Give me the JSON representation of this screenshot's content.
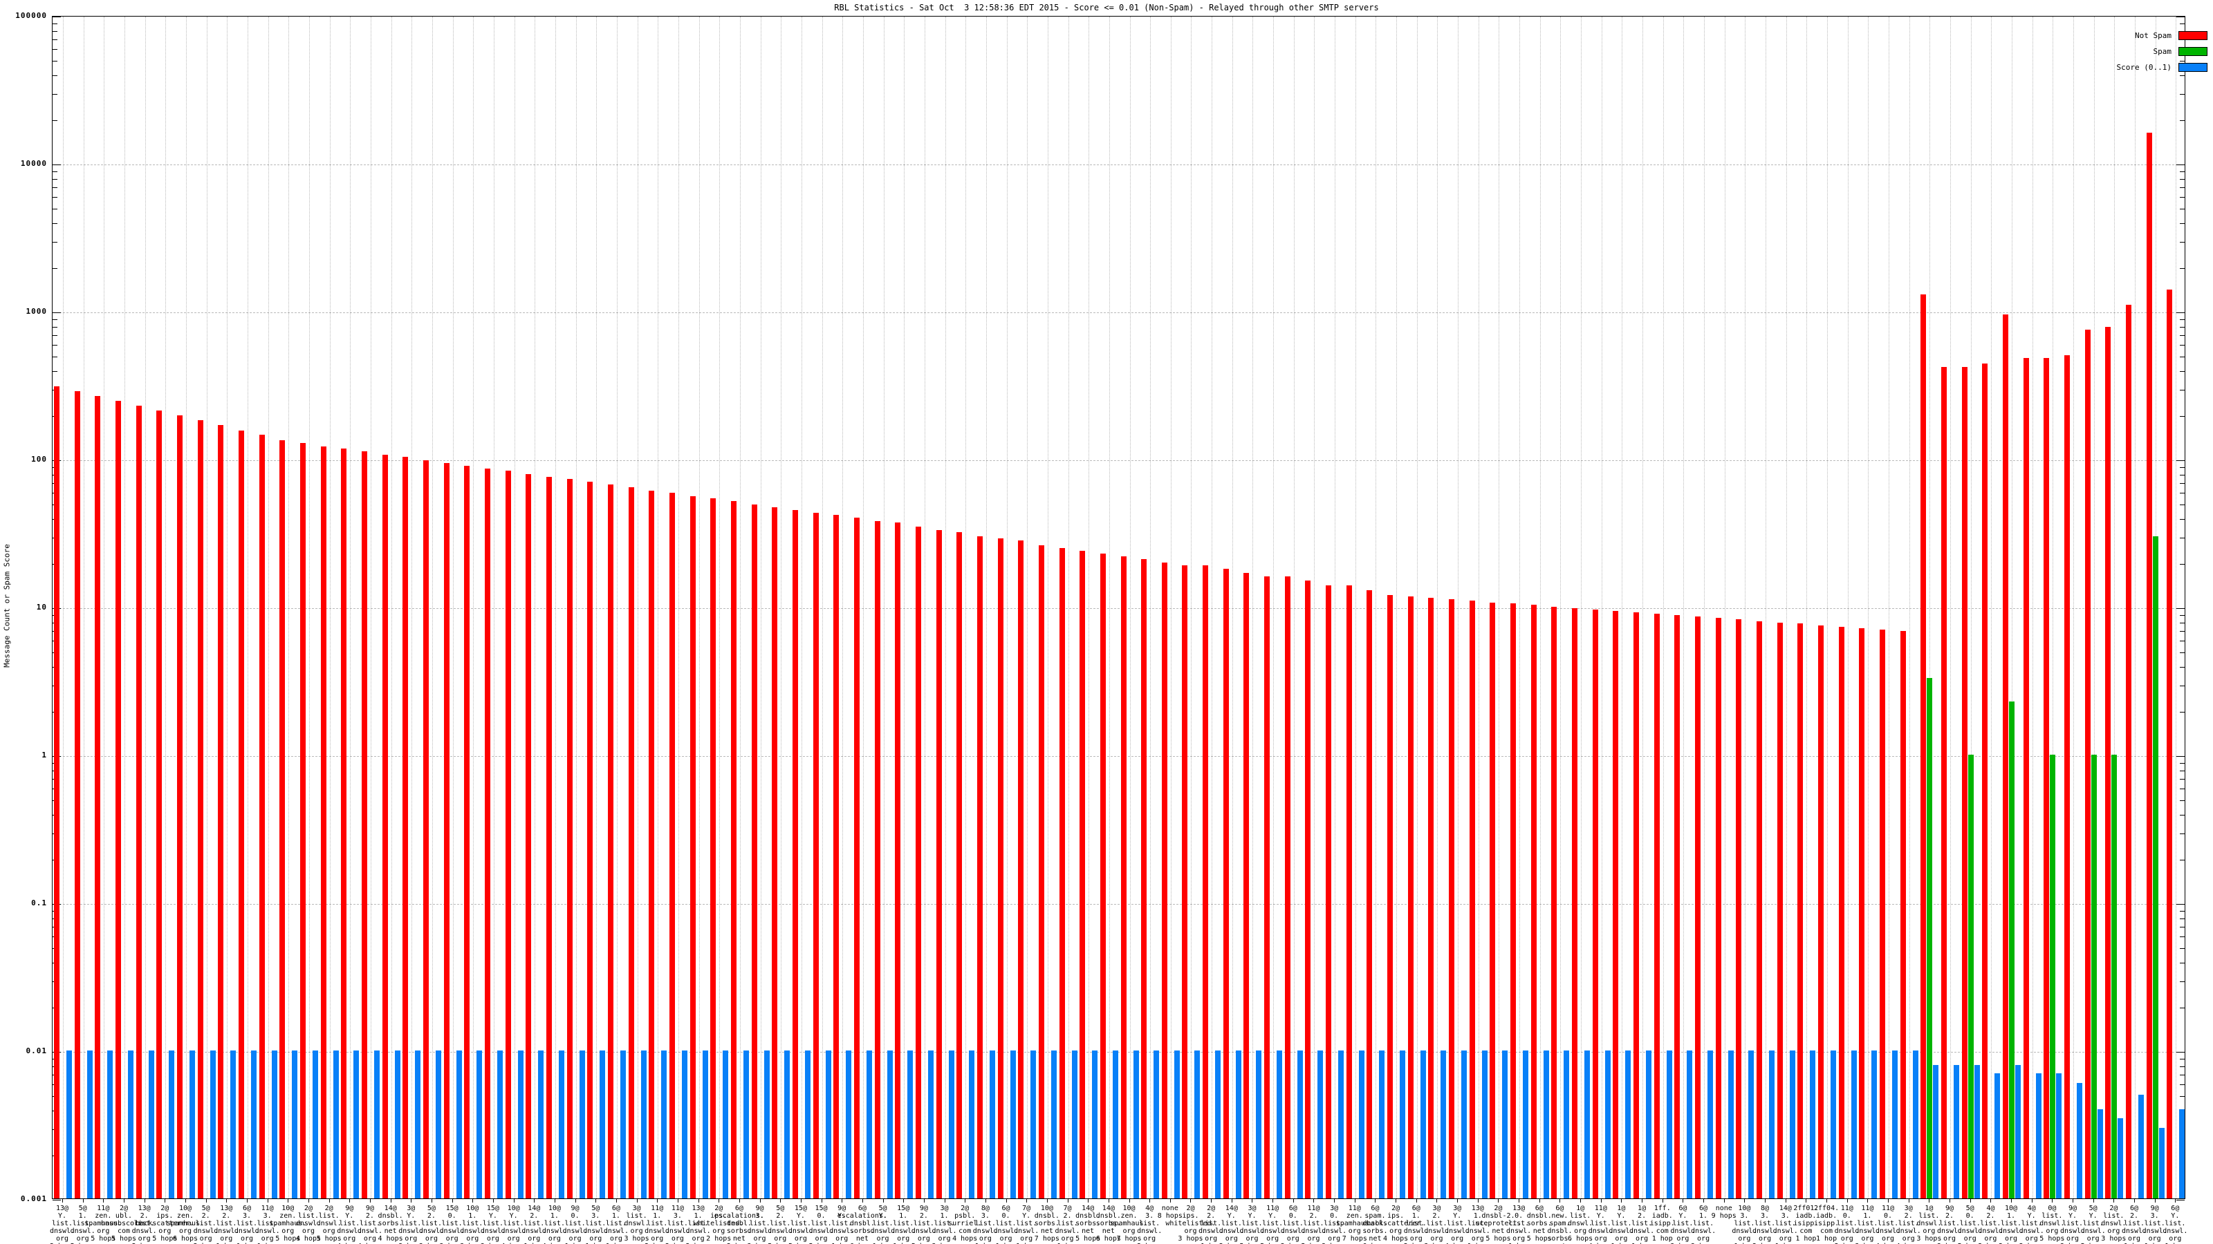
{
  "title": "RBL Statistics - Sat Oct  3 12:58:36 EDT 2015 - Score <= 0.01 (Non-Spam) - Relayed through other SMTP servers",
  "legend": [
    {
      "label": "Not Spam",
      "color": "#ff0000"
    },
    {
      "label": "Spam",
      "color": "#00b400"
    },
    {
      "label": "Score (0..1)",
      "color": "#0880f8"
    }
  ],
  "colors": {
    "not_spam": "#ff0000",
    "spam": "#00b400",
    "score": "#0880f8",
    "grid": "#b9b9b9"
  },
  "chart_data": {
    "type": "bar",
    "title": "RBL Statistics - Sat Oct  3 12:58:36 EDT 2015 - Score <= 0.01 (Non-Spam) - Relayed through other SMTP servers",
    "xlabel": "",
    "ylabel": "Message Count or Spam Score",
    "yscale": "log",
    "ylim": [
      0.001,
      100000
    ],
    "ytick_values": [
      100000,
      10000,
      1000,
      100,
      10,
      1,
      0.1,
      0.01,
      0.001
    ],
    "ytick_labels": [
      "100000",
      "10000",
      "1000",
      "100",
      "10",
      "1",
      "0.1",
      "0.01",
      "0.001"
    ],
    "grid": true,
    "legend_position": "top-right",
    "categories": [
      "13@ Y. list. dnswl. org 2 hops",
      "5@ 1. list. dnswl. org 5 hops",
      "11@ zen. spamhaus. org 5 hops",
      "2@ ubl. unsubscore. com 5 hops",
      "13@ 2. list. dnswl. org 2 hops",
      "2@ ips. backscatterer. org 5 hops",
      "10@ zen. spamhaus. org 6 hops",
      "5@ 2. list. dnswl. org 2 hops",
      "13@ 2. list. dnswl. org 1 hop",
      "6@ 3. list. dnswl. org 1 hop",
      "11@ 3. list. dnswl. org 1 hop",
      "10@ zen. spamhaus. org 5 hops",
      "2@ list. dnswl. org 4 hops",
      "2@ list. dnswl. org 5 hops",
      "9@ Y. list. dnswl. org 4 hops",
      "9@ 2. list. dnswl. org 4 hops",
      "14@ dnsbl. sorbs. net 4 hops",
      "3@ Y. list. dnswl. org 3 hops",
      "5@ 2. list. dnswl. org 3 hops",
      "15@ 0. list. dnswl. org 3 hops",
      "10@ 1. list. dnswl. org 3 hops",
      "15@ Y. list. dnswl. org 3 hops",
      "10@ Y. list. dnswl. org 4 hops",
      "14@ 2. list. dnswl. org 1 hop",
      "10@ 1. list. dnswl. org 4 hops",
      "9@ 0. list. dnswl. org 1 hop",
      "5@ 3. list. dnswl. org 1 hop",
      "6@ 1. list. dnswl. org 1 hop",
      "3@ list. dnswl. org 3 hops",
      "11@ 1. list. dnswl. org 2 hops",
      "11@ 3. list. dnswl. org 2 hops",
      "13@ 1. list. dnswl. org 2 hops",
      "2@ ips. whitelisted. org 2 hops",
      "6@ escalations. dnsbl. sorbs. net 2 hops",
      "9@ 3. list. dnswl. org 3 hops",
      "5@ 2. list. dnswl. org 5 hops",
      "15@ Y. list. dnswl. org 5 hops",
      "15@ 0. list. dnswl. org 5 hops",
      "9@ Y. list. dnswl. org 1 hop",
      "6@ escalations. dnsbl. sorbs. net 6 hops",
      "5@ Y. list. dnswl. org 1 hop",
      "15@ 1. list. dnswl. org 1 hop",
      "9@ 2. list. dnswl. org 5 hops",
      "3@ 1. list. dnswl. org 3 hops",
      "2@ psbl. surriel. com 4 hops",
      "8@ 3. list. dnswl. org 1 hop",
      "6@ 0. list. dnswl. org 1 hop",
      "7@ Y. list. dnswl. org 1 hop",
      "10@ dnsbl. sorbs. net 7 hops",
      "7@ 2. list. dnswl. org 1 hop",
      "14@ dnsbl. sorbs. net 5 hops",
      "14@ dnsbl. sorbs. net 6 hops",
      "10@ zen. spamhaus. org 7 hops",
      "4@ 3. list. dnswl. org 2 hops",
      "none 8 hops",
      "2@ ips. whitelisted. org 3 hops",
      "2@ 2. list. dnswl. org 1 hop",
      "14@ Y. list. dnswl. org 2 hops",
      "3@ Y. list. dnswl. org 5 hops",
      "11@ Y. list. dnswl. org 5 hops",
      "6@ 0. list. dnswl. org 2 hops",
      "11@ 2. list. dnswl. org 5 hops",
      "3@ 0. list. dnswl. org 3 hops",
      "11@ zen. spamhaus. org 7 hops",
      "6@ spam. dnsbl. sorbs. net 6 hops",
      "2@ ips. backscatterer. org 4 hops",
      "6@ 1. list. dnswl. org 2 hops",
      "3@ 2. list. dnswl. org 3 hops",
      "3@ Y. list. dnswl. org 4 hops",
      "13@ 1. list. dnswl. org 1 hop",
      "2@ dnsbl-2. uceprotect. net 5 hops",
      "13@ 0. list. dnswl. org 1 hop",
      "6@ dnsbl. sorbs. net 5 hops",
      "6@ new. spam. dnsbl. sorbs. net 5 hops",
      "1@ list. dnswl. org 6 hops",
      "11@ Y. list. dnswl. org 4 hops",
      "1@ Y. list. dnswl. org 1 hop",
      "1@ 2. list. dnswl. org 1 hop",
      "1ff. iadb. isipp. com 1 hop",
      "6@ Y. list. dnswl. org 3 hops",
      "6@ 1. list. dnswl. org 3 hops",
      "none 9 hops",
      "10@ 3. list. dnswl. org 1 hop",
      "8@ 3. list. dnswl. org 2 hops",
      "14@ 3. list. dnswl. org 1 hop",
      "2ff01. iadb. isipp. com 1 hop",
      "2ff04. iadb. isipp. com 1 hop",
      "11@ 0. list. dnswl. org 2 hops",
      "11@ 1. list. dnswl. org 3 hops",
      "11@ 0. list. dnswl. org 4 hops",
      "3@ 2. list. dnswl. org 4 hops",
      "1@ list. dnswl. org 3 hops",
      "9@ 2. list. dnswl. org 3 hops",
      "5@ 0. list. dnswl. org 5 hops",
      "4@ 2. list. dnswl. org 2 hops",
      "10@ 1. list. dnswl. org 2 hops",
      "4@ Y. list. dnswl. org 2 hops",
      "0@ list. dnswl. org 5 hops",
      "9@ Y. list. dnswl. org 3 hops",
      "5@ Y. list. dnswl. org 5 hops",
      "2@ list. dnswl. org 3 hops",
      "6@ 2. list. dnswl. org 1 hop",
      "9@ 3. list. dnswl. org 1 hop",
      "6@ Y. list. dnswl. org 1 hop"
    ],
    "series": [
      {
        "name": "Not Spam",
        "color": "#ff0000",
        "values": [
          310,
          288,
          266,
          247,
          229,
          212,
          196,
          182,
          169,
          156,
          145,
          134,
          128,
          122,
          117,
          112,
          107,
          103,
          98,
          94,
          90,
          86,
          83,
          79,
          76,
          73,
          70,
          67,
          64,
          61,
          59,
          56,
          54,
          52,
          49,
          47,
          45,
          43,
          42,
          40,
          38,
          37,
          35,
          33,
          32,
          30,
          29,
          28,
          26,
          25,
          24,
          23,
          22,
          21,
          20,
          19,
          19,
          18,
          17,
          16,
          16,
          15,
          14,
          14,
          13,
          12,
          11.7,
          11.5,
          11.2,
          11,
          10.7,
          10.5,
          10.3,
          10,
          9.8,
          9.6,
          9.4,
          9.2,
          9,
          8.8,
          8.6,
          8.4,
          8.2,
          8,
          7.8,
          7.7,
          7.5,
          7.3,
          7.2,
          7,
          6.9,
          1300,
          420,
          420,
          440,
          950,
          480,
          480,
          500,
          750,
          780,
          1100,
          16000,
          1400
        ]
      },
      {
        "name": "Spam",
        "color": "#00b400",
        "values": [
          0.001,
          0.001,
          0.001,
          0.001,
          0.001,
          0.001,
          0.001,
          0.001,
          0.001,
          0.001,
          0.001,
          0.001,
          0.001,
          0.001,
          0.001,
          0.001,
          0.001,
          0.001,
          0.001,
          0.001,
          0.001,
          0.001,
          0.001,
          0.001,
          0.001,
          0.001,
          0.001,
          0.001,
          0.001,
          0.001,
          0.001,
          0.001,
          0.001,
          0.001,
          0.001,
          0.001,
          0.001,
          0.001,
          0.001,
          0.001,
          0.001,
          0.001,
          0.001,
          0.001,
          0.001,
          0.001,
          0.001,
          0.001,
          0.001,
          0.001,
          0.001,
          0.001,
          0.001,
          0.001,
          0.001,
          0.001,
          0.001,
          0.001,
          0.001,
          0.001,
          0.001,
          0.001,
          0.001,
          0.001,
          0.001,
          0.001,
          0.001,
          0.001,
          0.001,
          0.001,
          0.001,
          0.001,
          0.001,
          0.001,
          0.001,
          0.001,
          0.001,
          0.001,
          0.001,
          0.001,
          0.001,
          0.001,
          0.001,
          0.001,
          0.001,
          0.001,
          0.001,
          0.001,
          0.001,
          0.001,
          0.001,
          3.3,
          0.001,
          1.0,
          0.001,
          2.3,
          0.001,
          1.0,
          0.001,
          1.0,
          1.0,
          0.001,
          30,
          0.001
        ]
      },
      {
        "name": "Score (0..1)",
        "color": "#0880f8",
        "values": [
          0.01,
          0.01,
          0.01,
          0.01,
          0.01,
          0.01,
          0.01,
          0.01,
          0.01,
          0.01,
          0.01,
          0.01,
          0.01,
          0.01,
          0.01,
          0.01,
          0.01,
          0.01,
          0.01,
          0.01,
          0.01,
          0.01,
          0.01,
          0.01,
          0.01,
          0.01,
          0.01,
          0.01,
          0.01,
          0.01,
          0.01,
          0.01,
          0.01,
          0.01,
          0.01,
          0.01,
          0.01,
          0.01,
          0.01,
          0.01,
          0.01,
          0.01,
          0.01,
          0.01,
          0.01,
          0.01,
          0.01,
          0.01,
          0.01,
          0.01,
          0.01,
          0.01,
          0.01,
          0.01,
          0.01,
          0.01,
          0.01,
          0.01,
          0.01,
          0.01,
          0.01,
          0.01,
          0.01,
          0.01,
          0.01,
          0.01,
          0.01,
          0.01,
          0.01,
          0.01,
          0.01,
          0.01,
          0.01,
          0.01,
          0.01,
          0.01,
          0.01,
          0.01,
          0.01,
          0.01,
          0.01,
          0.01,
          0.01,
          0.01,
          0.01,
          0.01,
          0.01,
          0.01,
          0.01,
          0.01,
          0.01,
          0.008,
          0.008,
          0.008,
          0.007,
          0.008,
          0.007,
          0.007,
          0.006,
          0.004,
          0.0035,
          0.005,
          0.003,
          0.004
        ]
      }
    ]
  }
}
